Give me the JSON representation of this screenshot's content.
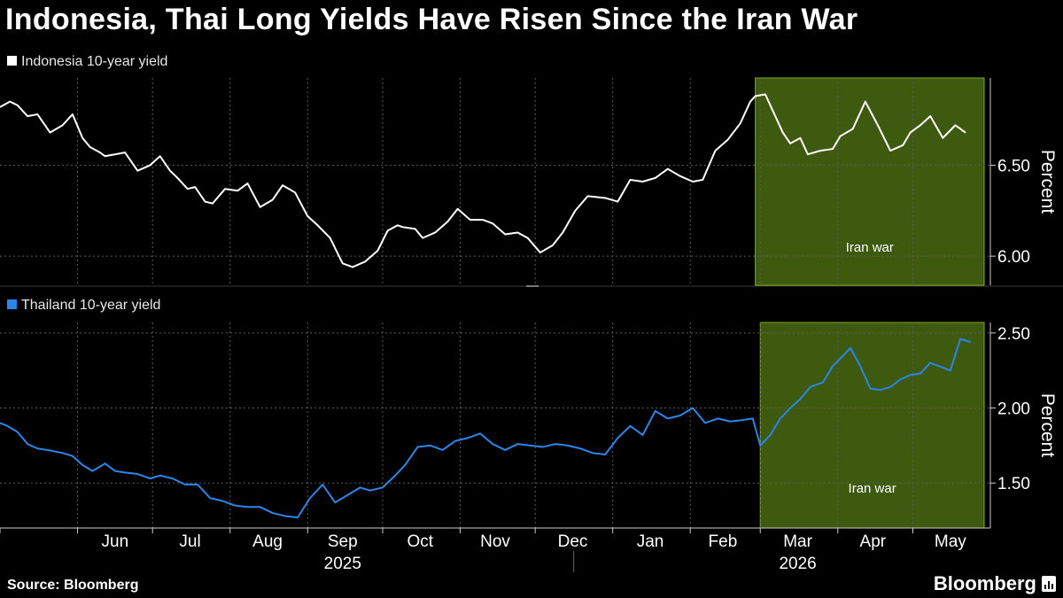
{
  "title": "Indonesia, Thai Long Yields Have Risen Since the Iran War",
  "source": "Source: Bloomberg",
  "logo_text": "Bloomberg",
  "colors": {
    "indonesia": "#ffffff",
    "thailand": "#2b86e8",
    "shade": "#3d5a0e",
    "shade_border": "#7fa82a",
    "grid": "#5a5a5a"
  },
  "chart_data": [
    {
      "type": "line",
      "legend": "Indonesia 10-year yield",
      "ylabel": "Percent",
      "yticks": [
        6.0,
        6.5
      ],
      "ytick_labels": [
        "6.00",
        "6.50"
      ],
      "ylim": [
        5.84,
        6.98
      ],
      "shade": {
        "start": "2026-02-27",
        "end": "2026-05-31",
        "label": "Iran war"
      },
      "series": [
        {
          "name": "Indonesia 10-year yield",
          "x": [
            "2025-05-01",
            "2025-05-05",
            "2025-05-08",
            "2025-05-12",
            "2025-05-16",
            "2025-05-21",
            "2025-05-26",
            "2025-05-30",
            "2025-06-03",
            "2025-06-06",
            "2025-06-10",
            "2025-06-12",
            "2025-06-16",
            "2025-06-20",
            "2025-06-25",
            "2025-06-30",
            "2025-07-04",
            "2025-07-08",
            "2025-07-11",
            "2025-07-15",
            "2025-07-18",
            "2025-07-22",
            "2025-07-25",
            "2025-07-30",
            "2025-08-04",
            "2025-08-08",
            "2025-08-13",
            "2025-08-18",
            "2025-08-22",
            "2025-08-27",
            "2025-09-01",
            "2025-09-05",
            "2025-09-10",
            "2025-09-15",
            "2025-09-19",
            "2025-09-24",
            "2025-09-29",
            "2025-10-03",
            "2025-10-07",
            "2025-10-09",
            "2025-10-14",
            "2025-10-17",
            "2025-10-22",
            "2025-10-27",
            "2025-10-31",
            "2025-11-05",
            "2025-11-10",
            "2025-11-14",
            "2025-11-19",
            "2025-11-24",
            "2025-11-28",
            "2025-12-03",
            "2025-12-08",
            "2025-12-12",
            "2025-12-17",
            "2025-12-22",
            "2025-12-29",
            "2026-01-03",
            "2026-01-08",
            "2026-01-13",
            "2026-01-18",
            "2026-01-23",
            "2026-01-28",
            "2026-02-02",
            "2026-02-06",
            "2026-02-11",
            "2026-02-16",
            "2026-02-21",
            "2026-02-25",
            "2026-02-27",
            "2026-03-03",
            "2026-03-06",
            "2026-03-10",
            "2026-03-13",
            "2026-03-17",
            "2026-03-20",
            "2026-03-25",
            "2026-03-30",
            "2026-04-02",
            "2026-04-07",
            "2026-04-12",
            "2026-04-17",
            "2026-04-22",
            "2026-04-27",
            "2026-04-30",
            "2026-05-04",
            "2026-05-08",
            "2026-05-13",
            "2026-05-18",
            "2026-05-22"
          ],
          "values": [
            6.82,
            6.85,
            6.83,
            6.77,
            6.78,
            6.68,
            6.72,
            6.78,
            6.65,
            6.6,
            6.57,
            6.55,
            6.56,
            6.57,
            6.47,
            6.5,
            6.55,
            6.47,
            6.43,
            6.37,
            6.38,
            6.3,
            6.29,
            6.37,
            6.36,
            6.4,
            6.27,
            6.31,
            6.39,
            6.35,
            6.22,
            6.17,
            6.1,
            5.96,
            5.94,
            5.97,
            6.03,
            6.14,
            6.17,
            6.16,
            6.15,
            6.1,
            6.13,
            6.19,
            6.26,
            6.2,
            6.2,
            6.18,
            6.12,
            6.13,
            6.1,
            6.02,
            6.06,
            6.13,
            6.25,
            6.33,
            6.32,
            6.3,
            6.42,
            6.41,
            6.43,
            6.48,
            6.44,
            6.41,
            6.42,
            6.58,
            6.64,
            6.73,
            6.85,
            6.88,
            6.89,
            6.8,
            6.68,
            6.62,
            6.65,
            6.56,
            6.58,
            6.59,
            6.66,
            6.7,
            6.85,
            6.72,
            6.58,
            6.61,
            6.68,
            6.72,
            6.77,
            6.65,
            6.72,
            6.68
          ]
        }
      ]
    },
    {
      "type": "line",
      "legend": "Thailand 10-year yield",
      "ylabel": "Percent",
      "yticks": [
        1.5,
        2.0,
        2.5
      ],
      "ytick_labels": [
        "1.50",
        "2.00",
        "2.50"
      ],
      "ylim": [
        1.2,
        2.57
      ],
      "shade": {
        "start": "2026-03-01",
        "end": "2026-05-31",
        "label": "Iran war"
      },
      "series": [
        {
          "name": "Thailand 10-year yield",
          "x": [
            "2025-05-01",
            "2025-05-04",
            "2025-05-08",
            "2025-05-12",
            "2025-05-16",
            "2025-05-20",
            "2025-05-26",
            "2025-05-30",
            "2025-06-03",
            "2025-06-07",
            "2025-06-12",
            "2025-06-16",
            "2025-06-20",
            "2025-06-25",
            "2025-06-30",
            "2025-07-04",
            "2025-07-09",
            "2025-07-14",
            "2025-07-19",
            "2025-07-24",
            "2025-07-29",
            "2025-08-03",
            "2025-08-08",
            "2025-08-13",
            "2025-08-18",
            "2025-08-23",
            "2025-08-28",
            "2025-09-02",
            "2025-09-07",
            "2025-09-12",
            "2025-09-17",
            "2025-09-22",
            "2025-09-26",
            "2025-10-01",
            "2025-10-06",
            "2025-10-10",
            "2025-10-15",
            "2025-10-20",
            "2025-10-25",
            "2025-10-30",
            "2025-11-04",
            "2025-11-09",
            "2025-11-14",
            "2025-11-19",
            "2025-11-24",
            "2025-11-29",
            "2025-12-04",
            "2025-12-09",
            "2025-12-14",
            "2025-12-19",
            "2025-12-24",
            "2025-12-29",
            "2026-01-03",
            "2026-01-08",
            "2026-01-13",
            "2026-01-18",
            "2026-01-23",
            "2026-01-28",
            "2026-02-02",
            "2026-02-07",
            "2026-02-12",
            "2026-02-17",
            "2026-02-22",
            "2026-02-26",
            "2026-03-01",
            "2026-03-05",
            "2026-03-09",
            "2026-03-13",
            "2026-03-17",
            "2026-03-21",
            "2026-03-26",
            "2026-03-30",
            "2026-04-02",
            "2026-04-06",
            "2026-04-10",
            "2026-04-14",
            "2026-04-18",
            "2026-04-22",
            "2026-04-26",
            "2026-04-30",
            "2026-05-04",
            "2026-05-08",
            "2026-05-13",
            "2026-05-16",
            "2026-05-20",
            "2026-05-24"
          ],
          "values": [
            1.9,
            1.88,
            1.84,
            1.76,
            1.73,
            1.72,
            1.7,
            1.68,
            1.62,
            1.58,
            1.63,
            1.58,
            1.57,
            1.56,
            1.53,
            1.55,
            1.53,
            1.49,
            1.49,
            1.4,
            1.38,
            1.35,
            1.34,
            1.34,
            1.3,
            1.28,
            1.27,
            1.4,
            1.49,
            1.37,
            1.42,
            1.47,
            1.45,
            1.47,
            1.55,
            1.62,
            1.74,
            1.75,
            1.72,
            1.78,
            1.8,
            1.83,
            1.76,
            1.72,
            1.76,
            1.75,
            1.74,
            1.76,
            1.75,
            1.73,
            1.7,
            1.69,
            1.8,
            1.88,
            1.82,
            1.98,
            1.93,
            1.95,
            2.0,
            1.9,
            1.93,
            1.91,
            1.92,
            1.93,
            1.75,
            1.82,
            1.93,
            2.0,
            2.06,
            2.14,
            2.17,
            2.28,
            2.33,
            2.4,
            2.28,
            2.13,
            2.12,
            2.14,
            2.19,
            2.22,
            2.23,
            2.3,
            2.27,
            2.25,
            2.46,
            2.44
          ]
        }
      ]
    }
  ],
  "x_axis": {
    "months": [
      {
        "label": "Jun",
        "center": "2025-06-16"
      },
      {
        "label": "Jul",
        "center": "2025-07-16"
      },
      {
        "label": "Aug",
        "center": "2025-08-16"
      },
      {
        "label": "Sep",
        "center": "2025-09-15"
      },
      {
        "label": "Oct",
        "center": "2025-10-16"
      },
      {
        "label": "Nov",
        "center": "2025-11-15"
      },
      {
        "label": "Dec",
        "center": "2025-12-16"
      },
      {
        "label": "Jan",
        "center": "2026-01-16"
      },
      {
        "label": "Feb",
        "center": "2026-02-14"
      },
      {
        "label": "Mar",
        "center": "2026-03-16"
      },
      {
        "label": "Apr",
        "center": "2026-04-15"
      },
      {
        "label": "May",
        "center": "2026-05-16"
      }
    ],
    "years": [
      {
        "label": "2025",
        "center": "2025-09-15"
      },
      {
        "label": "2026",
        "center": "2026-03-16"
      }
    ],
    "range": [
      "2025-05-01",
      "2026-06-01"
    ]
  }
}
